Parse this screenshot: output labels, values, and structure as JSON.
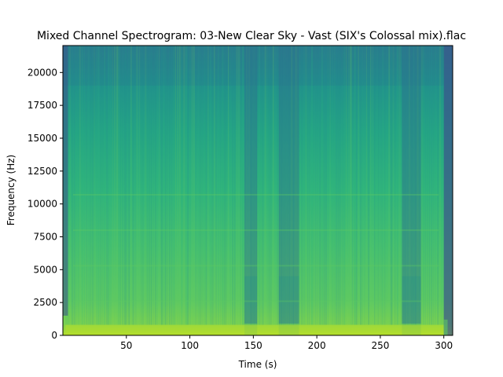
{
  "chart_data": {
    "type": "heatmap",
    "title": "Mixed Channel Spectrogram: 03-New Clear Sky - Vast (SIX's Colossal mix).flac",
    "xlabel": "Time (s)",
    "ylabel": "Frequency (Hz)",
    "xlim": [
      0,
      307
    ],
    "ylim": [
      0,
      22050
    ],
    "x_ticks": [
      50,
      100,
      150,
      200,
      250,
      300
    ],
    "y_ticks": [
      0,
      2500,
      5000,
      7500,
      10000,
      12500,
      15000,
      17500,
      20000
    ],
    "colormap": "viridis",
    "grid": false,
    "regions": {
      "quiet_sections_s": [
        [
          143,
          153
        ],
        [
          170,
          186
        ],
        [
          267,
          282
        ]
      ],
      "track_end_s": 300,
      "bright_bass_band_hz": [
        0,
        800
      ],
      "tone_lines_hz": [
        2600,
        5300,
        8000,
        10700
      ]
    },
    "colors": {
      "low": "#3b528b",
      "mid_low": "#2c728e",
      "mid": "#21918c",
      "mid_high": "#28ae80",
      "high": "#5ec962",
      "peak": "#b5de2b"
    }
  }
}
